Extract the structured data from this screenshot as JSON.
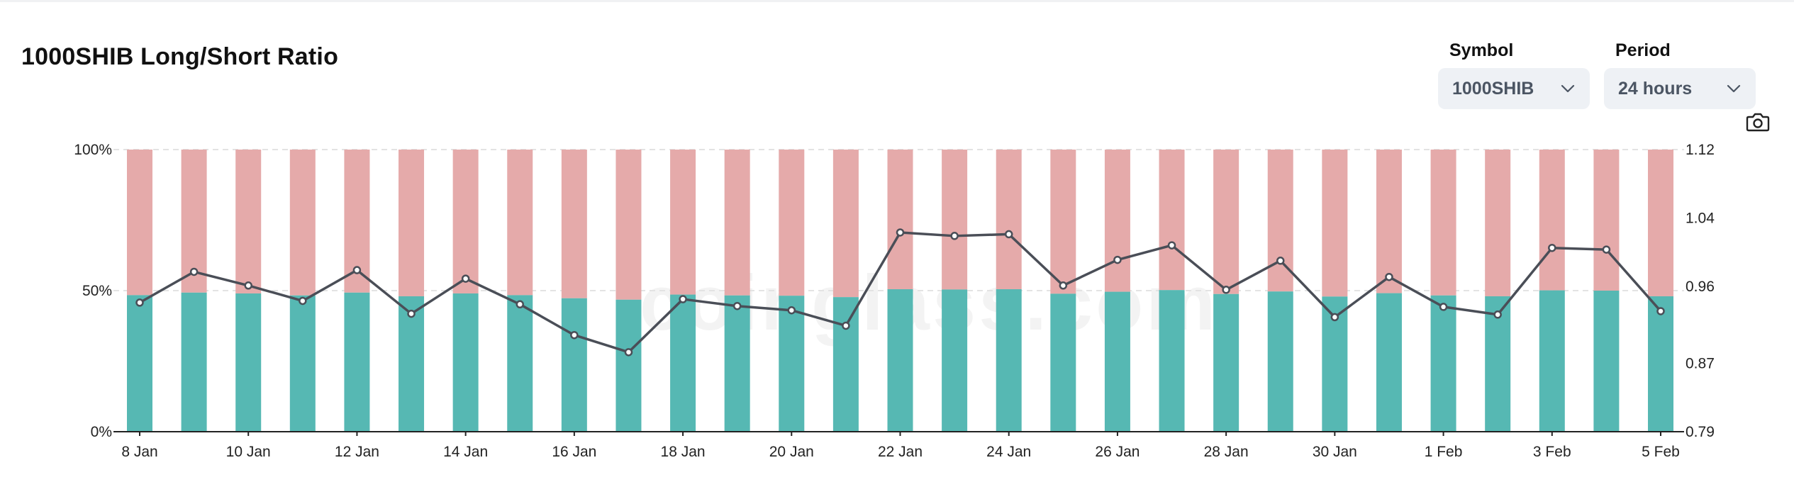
{
  "title": "1000SHIB Long/Short Ratio",
  "controls": {
    "symbol": {
      "label": "Symbol",
      "value": "1000SHIB"
    },
    "period": {
      "label": "Period",
      "value": "24 hours"
    }
  },
  "watermark": "coinglass.com",
  "colors": {
    "long": "#56b8b3",
    "short": "#e5aaaa",
    "line": "#4a4e57"
  },
  "chart_data": {
    "type": "bar",
    "stacked_percent": true,
    "x": [
      "8 Jan",
      "9 Jan",
      "10 Jan",
      "11 Jan",
      "12 Jan",
      "13 Jan",
      "14 Jan",
      "15 Jan",
      "16 Jan",
      "17 Jan",
      "18 Jan",
      "19 Jan",
      "20 Jan",
      "21 Jan",
      "22 Jan",
      "23 Jan",
      "24 Jan",
      "25 Jan",
      "26 Jan",
      "27 Jan",
      "28 Jan",
      "29 Jan",
      "30 Jan",
      "31 Jan",
      "1 Feb",
      "2 Feb",
      "3 Feb",
      "4 Feb",
      "5 Feb"
    ],
    "x_tick_labels": [
      "8 Jan",
      "10 Jan",
      "12 Jan",
      "14 Jan",
      "16 Jan",
      "18 Jan",
      "20 Jan",
      "22 Jan",
      "24 Jan",
      "26 Jan",
      "28 Jan",
      "30 Jan",
      "1 Feb",
      "3 Feb",
      "5 Feb"
    ],
    "series": [
      {
        "axis": "left",
        "values": [
          48.4,
          49.3,
          49.0,
          48.3,
          49.3,
          48.0,
          49.0,
          48.4,
          47.3,
          46.8,
          48.6,
          48.3,
          48.2,
          47.7,
          50.5,
          50.4,
          50.5,
          48.9,
          49.6,
          50.2,
          48.8,
          49.7,
          47.9,
          49.1,
          48.3,
          48.0,
          50.1,
          50.0,
          48.0
        ]
      },
      {
        "axis": "left",
        "values": [
          51.6,
          50.7,
          51.0,
          51.7,
          50.7,
          52.0,
          51.0,
          51.6,
          52.7,
          53.2,
          51.4,
          51.7,
          51.8,
          52.3,
          49.5,
          49.6,
          49.5,
          51.1,
          50.4,
          49.8,
          51.2,
          50.3,
          52.1,
          50.9,
          51.7,
          52.0,
          49.9,
          50.0,
          52.0
        ]
      },
      {
        "type": "line",
        "axis": "right",
        "values": [
          0.941,
          0.977,
          0.961,
          0.943,
          0.979,
          0.928,
          0.969,
          0.939,
          0.903,
          0.883,
          0.945,
          0.937,
          0.932,
          0.914,
          1.023,
          1.019,
          1.021,
          0.961,
          0.991,
          1.008,
          0.956,
          0.99,
          0.924,
          0.971,
          0.936,
          0.927,
          1.005,
          1.003,
          0.931
        ]
      }
    ],
    "y_left": {
      "ticks": [
        "0%",
        "50%",
        "100%"
      ],
      "range": [
        0,
        100
      ]
    },
    "y_right": {
      "ticks": [
        "0.79",
        "0.87",
        "0.96",
        "1.04",
        "1.12"
      ],
      "range": [
        0.79,
        1.12
      ]
    },
    "grid": "horizontal dashed",
    "legend": "none"
  }
}
